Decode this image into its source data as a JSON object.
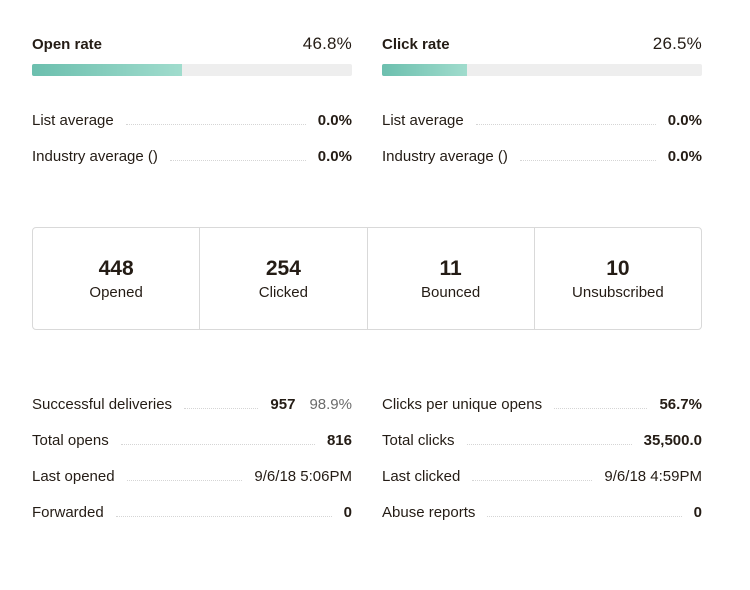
{
  "open_rate": {
    "label": "Open rate",
    "value": "46.8%",
    "fill_percent": 46.8,
    "list_average_label": "List average",
    "list_average_value": "0.0%",
    "industry_average_label": "Industry average ()",
    "industry_average_value": "0.0%"
  },
  "click_rate": {
    "label": "Click rate",
    "value": "26.5%",
    "fill_percent": 26.5,
    "list_average_label": "List average",
    "list_average_value": "0.0%",
    "industry_average_label": "Industry average ()",
    "industry_average_value": "0.0%"
  },
  "summary": [
    {
      "number": "448",
      "label": "Opened"
    },
    {
      "number": "254",
      "label": "Clicked"
    },
    {
      "number": "11",
      "label": "Bounced"
    },
    {
      "number": "10",
      "label": "Unsubscribed"
    }
  ],
  "left_details": [
    {
      "label": "Successful deliveries",
      "value": "957",
      "secondary": "98.9%"
    },
    {
      "label": "Total opens",
      "value": "816"
    },
    {
      "label": "Last opened",
      "value": "9/6/18 5:06PM"
    },
    {
      "label": "Forwarded",
      "value": "0"
    }
  ],
  "right_details": [
    {
      "label": "Clicks per unique opens",
      "value": "56.7%"
    },
    {
      "label": "Total clicks",
      "value": "35,500.0"
    },
    {
      "label": "Last clicked",
      "value": "9/6/18 4:59PM"
    },
    {
      "label": "Abuse reports",
      "value": "0"
    }
  ],
  "colors": {
    "bar_fill_start": "#6cbfae",
    "bar_fill_end": "#a0dccd",
    "bar_track": "#eeeeee",
    "text": "#241c15"
  }
}
